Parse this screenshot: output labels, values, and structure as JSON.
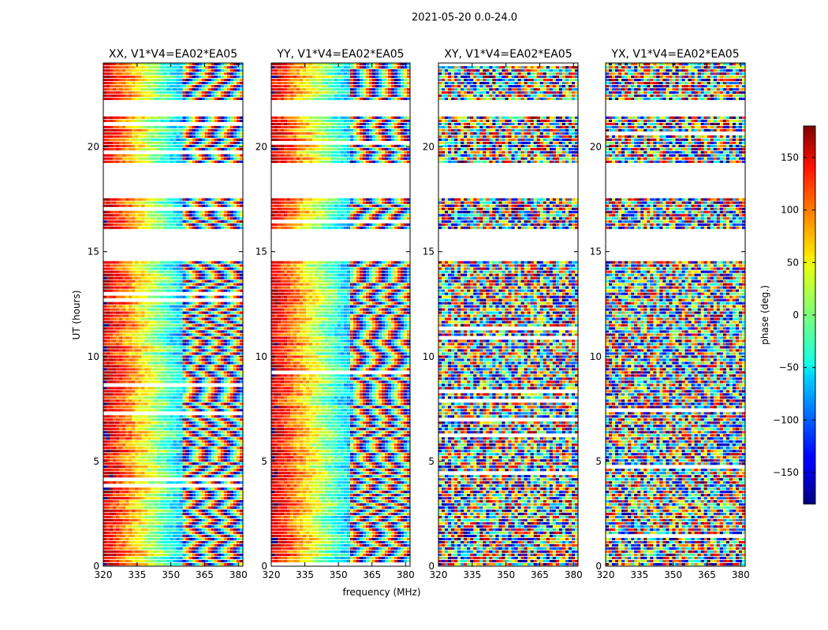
{
  "chart_data": {
    "type": "heatmap",
    "title": "2021-05-20 0.0-24.0",
    "xlabel": "frequency (MHz)",
    "ylabel": "UT (hours)",
    "xlim": [
      320,
      382
    ],
    "ylim": [
      0,
      24
    ],
    "xticks": [
      320,
      335,
      350,
      365,
      380
    ],
    "yticks": [
      0,
      5,
      10,
      15,
      20
    ],
    "panels": [
      {
        "name": "XX",
        "title": "XX, V1*V4=EA02*EA05"
      },
      {
        "name": "YY",
        "title": "YY, V1*V4=EA02*EA05"
      },
      {
        "name": "XY",
        "title": "XY, V1*V4=EA02*EA05"
      },
      {
        "name": "YX",
        "title": "YX, V1*V4=EA02*EA05"
      }
    ],
    "colorbar": {
      "label": "phase (deg.)",
      "range": [
        -180,
        180
      ],
      "ticks": [
        -150,
        -100,
        -50,
        0,
        50,
        100,
        150
      ],
      "colormap": "jet"
    },
    "flagged_gaps_hours": [
      [
        22.2,
        21.4
      ],
      [
        19.2,
        17.6
      ],
      [
        16.0,
        14.6
      ]
    ]
  }
}
